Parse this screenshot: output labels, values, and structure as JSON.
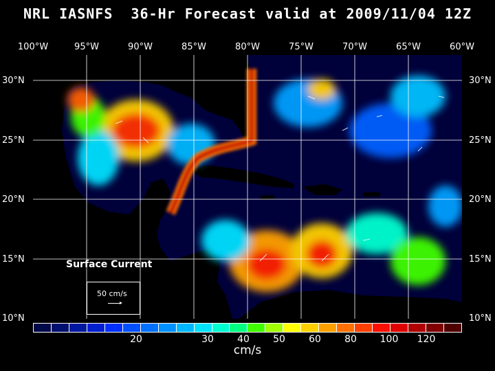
{
  "title": "NRL IASNFS  36-Hr Forecast valid at 2009/11/04 12Z",
  "longitudes": [
    "100°W",
    "95°W",
    "90°W",
    "85°W",
    "80°W",
    "75°W",
    "70°W",
    "65°W",
    "60°W"
  ],
  "latitudes": [
    "30°N",
    "25°N",
    "20°N",
    "15°N",
    "10°N"
  ],
  "overlay": {
    "surface_current": "Surface Current",
    "scale_label": "50 cm/s"
  },
  "colorbar": {
    "colors": [
      "#000a4a",
      "#001070",
      "#0018a0",
      "#0020d0",
      "#0030ff",
      "#0050ff",
      "#0070ff",
      "#0090ff",
      "#00b8ff",
      "#00e0ff",
      "#00ffd0",
      "#00ff80",
      "#40ff00",
      "#a0ff00",
      "#ffff00",
      "#ffd000",
      "#ffa000",
      "#ff7000",
      "#ff4000",
      "#ff1000",
      "#e00000",
      "#b00000",
      "#800000",
      "#500000"
    ],
    "ticks": [
      "20",
      "30",
      "40",
      "50",
      "60",
      "80",
      "100",
      "120"
    ],
    "units": "cm/s"
  }
}
